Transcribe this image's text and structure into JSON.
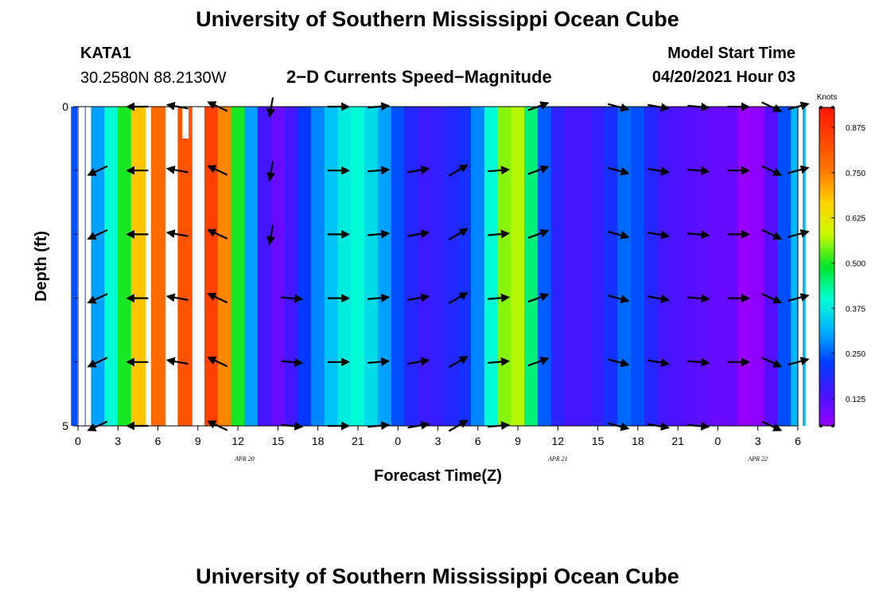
{
  "page": {
    "title_top": "University of Southern Mississippi Ocean Cube",
    "title_bottom": "University of Southern Mississippi Ocean Cube",
    "station_id": "KATA1",
    "station_coords": "30.2580N  88.2130W",
    "product_title": "2−D Currents Speed−Magnitude",
    "model_start_label": "Model Start Time",
    "model_start_value": "04/20/2021 Hour 03"
  },
  "chart_data": {
    "type": "heatmap",
    "xlabel": "Forecast Time(Z)",
    "ylabel": "Depth (ft)",
    "x_range_hours": [
      0,
      54
    ],
    "y_range_ft": [
      0,
      5
    ],
    "x_ticks": [
      {
        "hour": 0,
        "label": "0"
      },
      {
        "hour": 3,
        "label": "3"
      },
      {
        "hour": 6,
        "label": "6"
      },
      {
        "hour": 9,
        "label": "9"
      },
      {
        "hour": 12,
        "label": "12"
      },
      {
        "hour": 15,
        "label": "15"
      },
      {
        "hour": 18,
        "label": "18"
      },
      {
        "hour": 21,
        "label": "21"
      },
      {
        "hour": 24,
        "label": "0"
      },
      {
        "hour": 27,
        "label": "3"
      },
      {
        "hour": 30,
        "label": "6"
      },
      {
        "hour": 33,
        "label": "9"
      },
      {
        "hour": 36,
        "label": "12"
      },
      {
        "hour": 39,
        "label": "15"
      },
      {
        "hour": 42,
        "label": "18"
      },
      {
        "hour": 45,
        "label": "21"
      },
      {
        "hour": 48,
        "label": "0"
      },
      {
        "hour": 51,
        "label": "3"
      },
      {
        "hour": 54,
        "label": "6"
      }
    ],
    "date_labels": [
      {
        "hour": 12.5,
        "text": "APR 20"
      },
      {
        "hour": 36,
        "text": "APR 21"
      },
      {
        "hour": 51,
        "text": "APR 22"
      }
    ],
    "y_ticks": [
      {
        "depth": 0,
        "label": "0"
      },
      {
        "depth": 5,
        "label": "5"
      }
    ],
    "y_minor_ticks": [
      1,
      2,
      3,
      4
    ],
    "colorbar": {
      "label": "Knots",
      "min": 0.05,
      "max": 0.93,
      "ticks": [
        0.125,
        0.25,
        0.375,
        0.5,
        0.625,
        0.75,
        0.875
      ],
      "tick_labels": [
        "0.125",
        "0.250",
        "0.375",
        "0.500",
        "0.625",
        "0.750",
        "0.875"
      ]
    },
    "depth_levels": [
      0.25,
      0.75,
      1.25,
      1.75,
      2.25,
      2.75,
      3.25,
      3.75,
      4.25,
      4.75
    ],
    "speed_profile_surface": [
      {
        "h": 0,
        "v": 0.24
      },
      {
        "h": 1.5,
        "v": 0.3
      },
      {
        "h": 2.5,
        "v": 0.4
      },
      {
        "h": 3.5,
        "v": 0.5
      },
      {
        "h": 4.5,
        "v": 0.68
      },
      {
        "h": 6,
        "v": 0.78
      },
      {
        "h": 8,
        "v": 0.82
      },
      {
        "h": 10,
        "v": 0.85
      },
      {
        "h": 11,
        "v": 0.74
      },
      {
        "h": 12,
        "v": 0.5
      },
      {
        "h": 13,
        "v": 0.3
      },
      {
        "h": 14,
        "v": 0.14
      },
      {
        "h": 15,
        "v": 0.1
      },
      {
        "h": 16,
        "v": 0.14
      },
      {
        "h": 17,
        "v": 0.22
      },
      {
        "h": 18,
        "v": 0.28
      },
      {
        "h": 19,
        "v": 0.33
      },
      {
        "h": 20,
        "v": 0.38
      },
      {
        "h": 21,
        "v": 0.4
      },
      {
        "h": 22,
        "v": 0.36
      },
      {
        "h": 23,
        "v": 0.3
      },
      {
        "h": 24,
        "v": 0.24
      },
      {
        "h": 25,
        "v": 0.18
      },
      {
        "h": 26,
        "v": 0.15
      },
      {
        "h": 27,
        "v": 0.16
      },
      {
        "h": 28,
        "v": 0.18
      },
      {
        "h": 29,
        "v": 0.2
      },
      {
        "h": 30,
        "v": 0.28
      },
      {
        "h": 31,
        "v": 0.4
      },
      {
        "h": 32,
        "v": 0.55
      },
      {
        "h": 33,
        "v": 0.57
      },
      {
        "h": 34,
        "v": 0.45
      },
      {
        "h": 35,
        "v": 0.25
      },
      {
        "h": 36,
        "v": 0.17
      },
      {
        "h": 37,
        "v": 0.14
      },
      {
        "h": 38,
        "v": 0.14
      },
      {
        "h": 39,
        "v": 0.16
      },
      {
        "h": 40,
        "v": 0.2
      },
      {
        "h": 41,
        "v": 0.26
      },
      {
        "h": 42,
        "v": 0.24
      },
      {
        "h": 43,
        "v": 0.18
      },
      {
        "h": 44,
        "v": 0.14
      },
      {
        "h": 45,
        "v": 0.13
      },
      {
        "h": 46,
        "v": 0.12
      },
      {
        "h": 47,
        "v": 0.11
      },
      {
        "h": 48,
        "v": 0.1
      },
      {
        "h": 49,
        "v": 0.1
      },
      {
        "h": 50,
        "v": 0.05
      },
      {
        "h": 51,
        "v": 0.06
      },
      {
        "h": 52,
        "v": 0.12
      },
      {
        "h": 53,
        "v": 0.24
      },
      {
        "h": 54,
        "v": 0.32
      }
    ],
    "vectors": [
      {
        "hour": 1.5,
        "depth_levels": [
          1,
          2,
          3,
          4,
          5
        ],
        "dir_deg": 155,
        "len": 1.0
      },
      {
        "hour": 4.5,
        "depth_levels": [
          0,
          1,
          2,
          3,
          4,
          5
        ],
        "dir_deg": 180,
        "len": 1.0
      },
      {
        "hour": 7.5,
        "depth_levels": [
          0,
          1,
          2,
          3,
          4
        ],
        "dir_deg": 190,
        "len": 1.0
      },
      {
        "hour": 10.5,
        "depth_levels": [
          0,
          1,
          2,
          3,
          4,
          5
        ],
        "dir_deg": 205,
        "len": 1.0
      },
      {
        "hour": 14.5,
        "depth_levels": [
          0,
          1,
          2
        ],
        "dir_deg": 100,
        "len": 0.9
      },
      {
        "hour": 16,
        "depth_levels": [
          3,
          4,
          5
        ],
        "dir_deg": 5,
        "len": 1.0
      },
      {
        "hour": 19.5,
        "depth_levels": [
          0,
          1,
          2,
          3,
          4,
          5
        ],
        "dir_deg": 0,
        "len": 1.0
      },
      {
        "hour": 22.5,
        "depth_levels": [
          0,
          1,
          2,
          3,
          4,
          5
        ],
        "dir_deg": 355,
        "len": 1.0
      },
      {
        "hour": 25.5,
        "depth_levels": [
          1,
          2,
          3,
          4,
          5
        ],
        "dir_deg": 350,
        "len": 1.0
      },
      {
        "hour": 28.5,
        "depth_levels": [
          1,
          2,
          3,
          4,
          5
        ],
        "dir_deg": 330,
        "len": 1.0
      },
      {
        "hour": 31.5,
        "depth_levels": [
          1,
          2,
          3,
          4,
          5
        ],
        "dir_deg": 355,
        "len": 1.0
      },
      {
        "hour": 34.5,
        "depth_levels": [
          0,
          1,
          2,
          3,
          4
        ],
        "dir_deg": 340,
        "len": 1.0
      },
      {
        "hour": 40.5,
        "depth_levels": [
          0,
          1,
          2,
          3,
          4,
          5
        ],
        "dir_deg": 15,
        "len": 1.0
      },
      {
        "hour": 43.5,
        "depth_levels": [
          0,
          1,
          2,
          3,
          4,
          5
        ],
        "dir_deg": 10,
        "len": 1.0
      },
      {
        "hour": 46.5,
        "depth_levels": [
          0,
          1,
          2,
          3,
          4,
          5
        ],
        "dir_deg": 5,
        "len": 1.0
      },
      {
        "hour": 49.5,
        "depth_levels": [
          0,
          1,
          2,
          3,
          4
        ],
        "dir_deg": 0,
        "len": 1.0
      },
      {
        "hour": 52,
        "depth_levels": [
          0,
          1,
          2,
          3,
          4,
          5
        ],
        "dir_deg": 25,
        "len": 1.0
      },
      {
        "hour": 54,
        "depth_levels": [
          0,
          1,
          2,
          3,
          4
        ],
        "dir_deg": 345,
        "len": 1.0
      }
    ]
  }
}
